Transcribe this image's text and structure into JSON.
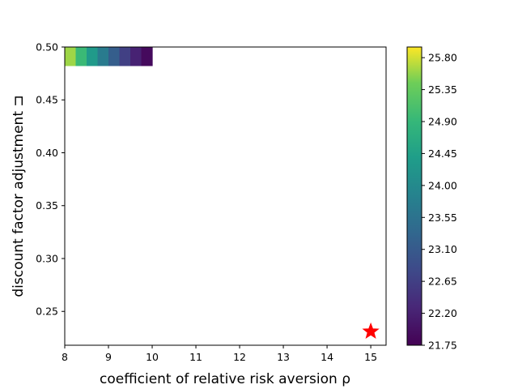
{
  "chart_data": {
    "type": "heatmap",
    "xlabel": "coefficient of relative risk aversion ρ",
    "ylabel": "discount factor adjustment ⊐",
    "xlim": [
      8,
      15.35
    ],
    "ylim": [
      0.218,
      0.5
    ],
    "x_ticks": [
      "8",
      "9",
      "10",
      "11",
      "12",
      "13",
      "14",
      "15"
    ],
    "x_tick_values": [
      8,
      9,
      10,
      11,
      12,
      13,
      14,
      15
    ],
    "y_ticks": [
      "0.25",
      "0.30",
      "0.35",
      "0.40",
      "0.45",
      "0.50"
    ],
    "y_tick_values": [
      0.25,
      0.3,
      0.35,
      0.4,
      0.45,
      0.5
    ],
    "heat_band": {
      "x_range": [
        8,
        10
      ],
      "y_range": [
        0.482,
        0.5
      ],
      "x_values": [
        8.0,
        8.25,
        8.5,
        8.75,
        9.0,
        9.25,
        9.5,
        9.75,
        10.0
      ],
      "z_values": [
        25.9,
        25.3,
        24.6,
        24.0,
        23.4,
        22.9,
        22.4,
        22.0,
        21.75
      ]
    },
    "marker": {
      "x": 15,
      "y": 0.231,
      "shape": "star",
      "color": "#ff0000"
    },
    "colorbar": {
      "min": 21.75,
      "max": 25.95,
      "ticks": [
        "21.75",
        "22.20",
        "22.65",
        "23.10",
        "23.55",
        "24.00",
        "24.45",
        "24.90",
        "25.35",
        "25.80"
      ],
      "tick_values": [
        21.75,
        22.2,
        22.65,
        23.1,
        23.55,
        24.0,
        24.45,
        24.9,
        25.35,
        25.8
      ],
      "colormap": "viridis"
    },
    "grid": false
  }
}
